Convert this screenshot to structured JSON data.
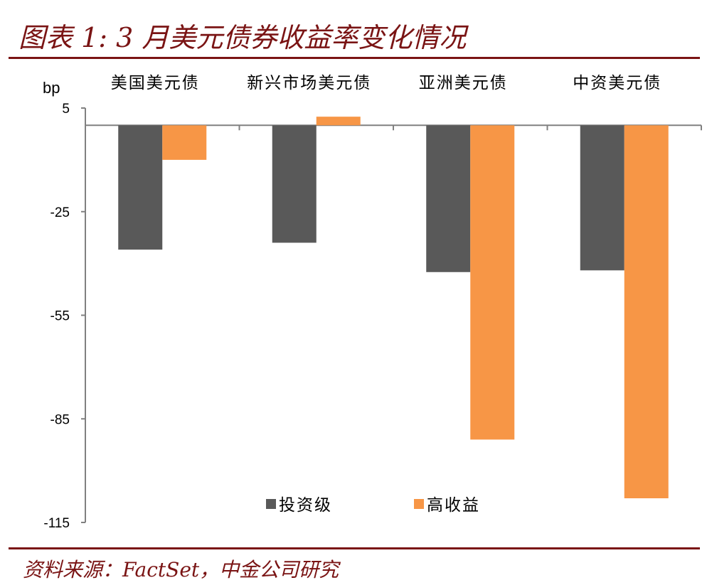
{
  "title": "图表 1: 3 月美元债券收益率变化情况",
  "source": "资料来源：FactSet，中金公司研究",
  "chart_data": {
    "type": "bar",
    "title": "",
    "xlabel": "",
    "ylabel": "bp",
    "ylim": [
      -115,
      5
    ],
    "yticks": [
      5,
      -25,
      -55,
      -85,
      -115
    ],
    "categories": [
      "美国美元债",
      "新兴市场美元债",
      "亚洲美元债",
      "中资美元债"
    ],
    "series": [
      {
        "name": "投资级",
        "color": "#595959",
        "values": [
          -36,
          -34,
          -42.5,
          -42
        ]
      },
      {
        "name": "高收益",
        "color": "#f79646",
        "values": [
          -10,
          2.5,
          -91,
          -108
        ]
      }
    ],
    "legend_position": "bottom-center",
    "category_labels_position": "top",
    "grid": false
  }
}
